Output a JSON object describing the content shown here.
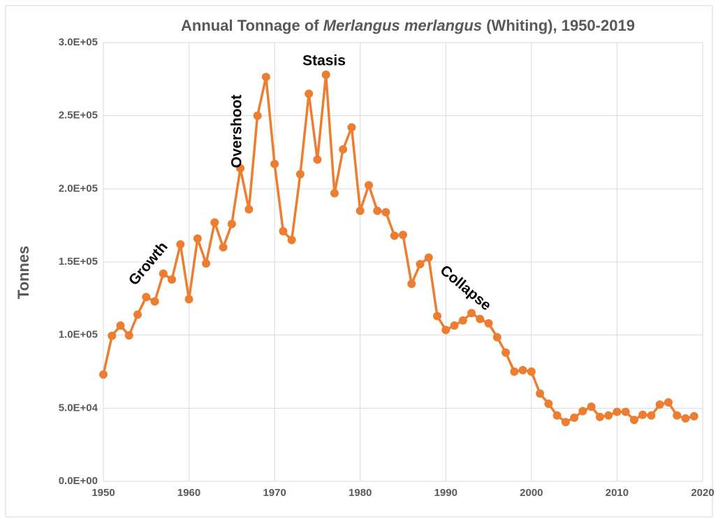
{
  "chart_data": {
    "type": "line",
    "title": "Annual Tonnage of Merlangus merlangus (Whiting), 1950-2019",
    "title_italic": "Merlangus merlangus",
    "y_label": "Tonnes",
    "x": [
      1950,
      1951,
      1952,
      1953,
      1954,
      1955,
      1956,
      1957,
      1958,
      1959,
      1960,
      1961,
      1962,
      1963,
      1964,
      1965,
      1966,
      1967,
      1968,
      1969,
      1970,
      1971,
      1972,
      1973,
      1974,
      1975,
      1976,
      1977,
      1978,
      1979,
      1980,
      1981,
      1982,
      1983,
      1984,
      1985,
      1986,
      1987,
      1988,
      1989,
      1990,
      1991,
      1992,
      1993,
      1994,
      1995,
      1996,
      1997,
      1998,
      1999,
      2000,
      2001,
      2002,
      2003,
      2004,
      2005,
      2006,
      2007,
      2008,
      2009,
      2010,
      2011,
      2012,
      2013,
      2014,
      2015,
      2016,
      2017,
      2018,
      2019
    ],
    "series": [
      {
        "name": "Whiting",
        "color": "#ed7d31",
        "values": [
          73000,
          99500,
          106500,
          99800,
          114000,
          126000,
          123000,
          142000,
          138000,
          162000,
          124500,
          166000,
          149000,
          177000,
          160000,
          176000,
          214000,
          186000,
          250000,
          276500,
          217000,
          171000,
          165000,
          210000,
          265000,
          220000,
          278000,
          197000,
          227000,
          242000,
          185000,
          202500,
          185000,
          184000,
          168000,
          168500,
          135000,
          148500,
          153000,
          113000,
          103500,
          106500,
          110000,
          115000,
          111000,
          108000,
          98500,
          88000,
          75000,
          76000,
          75000,
          60000,
          53000,
          45000,
          40500,
          43500,
          48000,
          51000,
          44000,
          45000,
          47500,
          47500,
          42000,
          45500,
          45000,
          52500,
          54000,
          45000,
          43000,
          44500
        ]
      }
    ],
    "xlim": [
      1950,
      2020
    ],
    "xticks": [
      1950,
      1960,
      1970,
      1980,
      1990,
      2000,
      2010,
      2020
    ],
    "ylim": [
      0,
      300000
    ],
    "yticks": [
      {
        "value": 0,
        "label": "0.0E+00"
      },
      {
        "value": 50000,
        "label": "5.0E+04"
      },
      {
        "value": 100000,
        "label": "1.0E+05"
      },
      {
        "value": 150000,
        "label": "1.5E+05"
      },
      {
        "value": 200000,
        "label": "2.0E+05"
      },
      {
        "value": 250000,
        "label": "2.5E+05"
      },
      {
        "value": 300000,
        "label": "3.0E+05"
      }
    ],
    "grid": true,
    "annotations": [
      "Growth",
      "Overshoot",
      "Stasis",
      "Collapse"
    ]
  }
}
